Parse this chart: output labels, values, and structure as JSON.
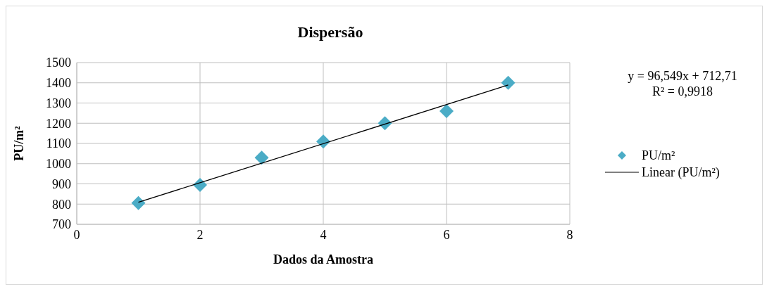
{
  "chart_data": {
    "type": "scatter",
    "title": "Dispersão",
    "xlabel": "Dados da Amostra",
    "ylabel": "PU/m²",
    "annotations": [
      "y = 96,549x + 712,71",
      "R² = 0,9918"
    ],
    "series": [
      {
        "name": "PU/m²",
        "color": "#4bacc6",
        "marker": "diamond",
        "x": [
          1,
          2,
          3,
          4,
          5,
          6,
          7
        ],
        "values": [
          805,
          895,
          1030,
          1110,
          1200,
          1260,
          1400
        ]
      },
      {
        "name": "Linear (PU/m²)",
        "type": "line",
        "color": "#000000",
        "marker": "none",
        "line_style": "solid",
        "x": [
          1,
          7
        ],
        "values": [
          809,
          1389
        ]
      }
    ],
    "xlim": [
      0,
      8
    ],
    "xticks": [
      0,
      2,
      4,
      6,
      8
    ],
    "ylim": [
      700,
      1500
    ],
    "yticks": [
      700,
      800,
      900,
      1000,
      1100,
      1200,
      1300,
      1400,
      1500
    ],
    "grid": true,
    "legend": "right"
  }
}
